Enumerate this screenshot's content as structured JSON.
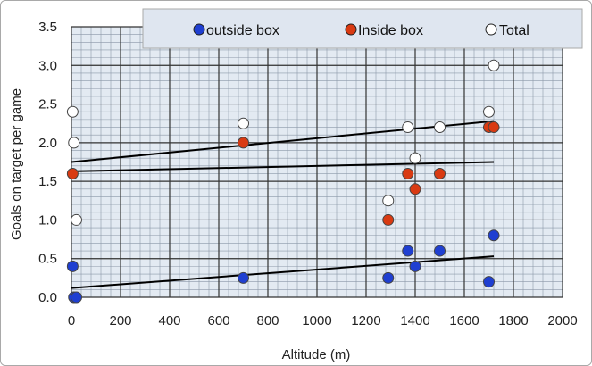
{
  "chart_data": {
    "type": "scatter",
    "title": "",
    "xlabel": "Altitude (m)",
    "ylabel": "Goals on target per game",
    "xlim": [
      0,
      2000
    ],
    "ylim": [
      0,
      3.5
    ],
    "xticks": [
      0,
      200,
      400,
      600,
      800,
      1000,
      1200,
      1400,
      1600,
      1800,
      2000
    ],
    "yticks": [
      0.0,
      0.5,
      1.0,
      1.5,
      2.0,
      2.5,
      3.0,
      3.5
    ],
    "ytick_labels": [
      "0.0",
      "0.5",
      "1.0",
      "1.5",
      "2.0",
      "2.5",
      "3.0",
      "3.5"
    ],
    "grid": "major and minor",
    "legend_position": "top",
    "series": [
      {
        "name": "outside box",
        "color": "#1f3fd1",
        "points": [
          [
            5,
            0.4
          ],
          [
            10,
            0.0
          ],
          [
            20,
            0.0
          ],
          [
            700,
            0.25
          ],
          [
            1290,
            0.25
          ],
          [
            1370,
            0.6
          ],
          [
            1400,
            0.4
          ],
          [
            1500,
            0.6
          ],
          [
            1700,
            0.2
          ],
          [
            1720,
            0.8
          ]
        ]
      },
      {
        "name": "Inside box",
        "color": "#d93a12",
        "points": [
          [
            5,
            1.6
          ],
          [
            700,
            2.0
          ],
          [
            1290,
            1.0
          ],
          [
            1370,
            1.6
          ],
          [
            1400,
            1.4
          ],
          [
            1500,
            1.6
          ],
          [
            1700,
            2.2
          ],
          [
            1720,
            2.2
          ]
        ]
      },
      {
        "name": "Total",
        "color": "#ffffff",
        "points": [
          [
            5,
            2.4
          ],
          [
            10,
            2.0
          ],
          [
            20,
            1.0
          ],
          [
            700,
            2.25
          ],
          [
            1290,
            1.25
          ],
          [
            1370,
            2.2
          ],
          [
            1400,
            1.8
          ],
          [
            1500,
            2.2
          ],
          [
            1700,
            2.4
          ],
          [
            1720,
            3.0
          ]
        ]
      }
    ],
    "trendlines": [
      {
        "series": "Total",
        "x": [
          0,
          1720
        ],
        "y": [
          1.75,
          2.28
        ]
      },
      {
        "series": "Inside box",
        "x": [
          0,
          1720
        ],
        "y": [
          1.63,
          1.75
        ]
      },
      {
        "series": "outside box",
        "x": [
          0,
          1720
        ],
        "y": [
          0.12,
          0.53
        ]
      }
    ]
  }
}
